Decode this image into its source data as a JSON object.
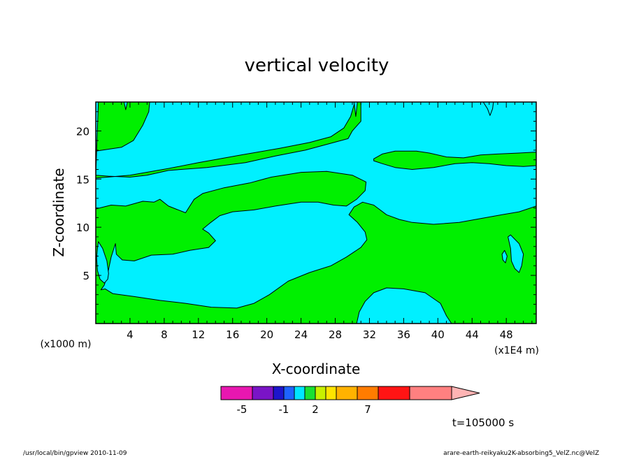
{
  "chart_data": {
    "type": "heatmap",
    "title": "vertical velocity",
    "xlabel": "X-coordinate",
    "ylabel": "Z-coordinate",
    "x_unit": "(x1E4 m)",
    "y_unit": "(x1000 m)",
    "xlim": [
      0,
      51.5
    ],
    "ylim": [
      0,
      23
    ],
    "x_ticks": [
      4,
      8,
      12,
      16,
      20,
      24,
      28,
      32,
      36,
      40,
      44,
      48
    ],
    "y_ticks": [
      5,
      10,
      15,
      20
    ],
    "time_label": "t=105000 s",
    "colorbar": {
      "colors": [
        "#e817b0",
        "#7a14c6",
        "#1d15cc",
        "#1e64ff",
        "#00e6ff",
        "#18e032",
        "#c8f000",
        "#ffe400",
        "#ffb200",
        "#ff7c00",
        "#ff1414",
        "#ff8080",
        "#ffb4b4"
      ],
      "widths": [
        1.5,
        1,
        0.5,
        0.5,
        0.5,
        0.5,
        0.5,
        0.5,
        1,
        1,
        1.5,
        283,
        1.7
      ],
      "tick_labels": [
        {
          "label": "-5",
          "position": 1.5
        },
        {
          "label": "-1",
          "position": 3.5
        },
        {
          "label": "2",
          "position": 5
        },
        {
          "label": "7",
          "position": 7.5
        }
      ]
    },
    "regions": [
      {
        "name": "green",
        "color": "#00f000"
      },
      {
        "name": "cyan",
        "color": "#00f0ff"
      }
    ],
    "contours": [
      {
        "fill": "#00f000",
        "points": [
          [
            0.3,
            23
          ],
          [
            6.3,
            23
          ],
          [
            6.2,
            22
          ],
          [
            5.5,
            20.6
          ],
          [
            4.4,
            19
          ],
          [
            3,
            18.3
          ],
          [
            0,
            17.9
          ],
          [
            0,
            15.1
          ],
          [
            4,
            15.4
          ],
          [
            8.5,
            16.1
          ],
          [
            12,
            16.7
          ],
          [
            17,
            17.5
          ],
          [
            21.5,
            18.2
          ],
          [
            25,
            18.8
          ],
          [
            27.5,
            19.4
          ],
          [
            29,
            20.3
          ],
          [
            29.8,
            21.5
          ],
          [
            30.3,
            23
          ],
          [
            31,
            23
          ],
          [
            31,
            21
          ],
          [
            30,
            20
          ],
          [
            29.5,
            19.2
          ],
          [
            27,
            18.6
          ],
          [
            24.5,
            18
          ],
          [
            21,
            17.4
          ],
          [
            17.5,
            16.7
          ],
          [
            13,
            16.2
          ],
          [
            8.5,
            15.9
          ],
          [
            6,
            15.4
          ],
          [
            4,
            15.2
          ],
          [
            1.5,
            15.3
          ],
          [
            0,
            15.4
          ]
        ]
      },
      {
        "fill": "#00f000",
        "points": [
          [
            0,
            11.9
          ],
          [
            1.8,
            12.3
          ],
          [
            3.5,
            12.2
          ],
          [
            5.5,
            12.7
          ],
          [
            6.8,
            12.6
          ],
          [
            7.5,
            12.9
          ],
          [
            8.5,
            12.2
          ],
          [
            10.5,
            11.5
          ],
          [
            11.5,
            12.9
          ],
          [
            12.5,
            13.5
          ],
          [
            15,
            14.1
          ],
          [
            18,
            14.6
          ],
          [
            20.5,
            15.2
          ],
          [
            24,
            15.7
          ],
          [
            27,
            15.8
          ],
          [
            30,
            15.4
          ],
          [
            31.6,
            14.7
          ],
          [
            31.5,
            13.8
          ],
          [
            30.5,
            12.9
          ],
          [
            29.3,
            12.2
          ],
          [
            27.8,
            12.3
          ],
          [
            26,
            12.6
          ],
          [
            24,
            12.6
          ],
          [
            21,
            12.2
          ],
          [
            18.5,
            11.8
          ],
          [
            16,
            11.6
          ],
          [
            14.5,
            11.2
          ],
          [
            13.3,
            10.4
          ],
          [
            12.5,
            9.8
          ],
          [
            13.2,
            9.4
          ],
          [
            14,
            8.6
          ],
          [
            13.2,
            7.9
          ],
          [
            11,
            7.6
          ],
          [
            9,
            7.2
          ],
          [
            6.5,
            7.1
          ],
          [
            4.5,
            6.5
          ],
          [
            3.1,
            6.6
          ],
          [
            2.4,
            7.2
          ],
          [
            2.3,
            8.3
          ],
          [
            1.8,
            6.9
          ],
          [
            1.4,
            5.2
          ],
          [
            1,
            4
          ],
          [
            0.6,
            3.5
          ],
          [
            1.1,
            3.6
          ],
          [
            2,
            3.1
          ],
          [
            4.5,
            2.8
          ],
          [
            7.5,
            2.4
          ],
          [
            10.5,
            2.1
          ],
          [
            13.5,
            1.7
          ],
          [
            16.5,
            1.6
          ],
          [
            18.5,
            2.1
          ],
          [
            20.3,
            3.0
          ],
          [
            22.5,
            4.4
          ],
          [
            25,
            5.3
          ],
          [
            27.5,
            6.0
          ],
          [
            29.3,
            6.9
          ],
          [
            31,
            7.9
          ],
          [
            31.7,
            8.7
          ],
          [
            31.5,
            9.5
          ],
          [
            30.6,
            10.5
          ],
          [
            29.6,
            11.3
          ],
          [
            30.2,
            12.1
          ],
          [
            31.2,
            12.6
          ],
          [
            32.5,
            12.3
          ],
          [
            34,
            11.3
          ],
          [
            35.5,
            10.8
          ],
          [
            37,
            10.5
          ],
          [
            39.5,
            10.3
          ],
          [
            42.5,
            10.5
          ],
          [
            45,
            10.9
          ],
          [
            47.5,
            11.3
          ],
          [
            49.5,
            11.6
          ],
          [
            51.5,
            12.2
          ],
          [
            51.5,
            0
          ],
          [
            41.6,
            0
          ],
          [
            41,
            0.8
          ],
          [
            40.3,
            2.1
          ],
          [
            38.5,
            3.2
          ],
          [
            36,
            3.6
          ],
          [
            34,
            3.7
          ],
          [
            32.5,
            3.2
          ],
          [
            31.5,
            2.3
          ],
          [
            30.8,
            1.2
          ],
          [
            30.5,
            0
          ],
          [
            0,
            0
          ]
        ]
      },
      {
        "fill": "#00f000",
        "points": [
          [
            32.5,
            17.1
          ],
          [
            33.5,
            17.6
          ],
          [
            35,
            17.9
          ],
          [
            37.5,
            17.9
          ],
          [
            39,
            17.7
          ],
          [
            41,
            17.3
          ],
          [
            43,
            17.2
          ],
          [
            45,
            17.5
          ],
          [
            47,
            17.6
          ],
          [
            49.5,
            17.7
          ],
          [
            51.5,
            17.8
          ],
          [
            51.5,
            16.4
          ],
          [
            50,
            16.3
          ],
          [
            48,
            16.4
          ],
          [
            46,
            16.6
          ],
          [
            44,
            16.7
          ],
          [
            42,
            16.6
          ],
          [
            39.5,
            16.2
          ],
          [
            37,
            16
          ],
          [
            35,
            16.2
          ],
          [
            33.5,
            16.6
          ],
          [
            32.5,
            16.9
          ]
        ]
      }
    ],
    "cyan_patches": [
      {
        "points": [
          [
            0.3,
            8.5
          ],
          [
            0.8,
            7.8
          ],
          [
            1.3,
            6.5
          ],
          [
            1.5,
            5.2
          ],
          [
            1.4,
            4.6
          ],
          [
            1,
            4.2
          ],
          [
            0.5,
            4.6
          ],
          [
            0.2,
            5.5
          ],
          [
            0.1,
            6.8
          ],
          [
            0.2,
            7.8
          ]
        ]
      },
      {
        "points": [
          [
            48.5,
            9.2
          ],
          [
            49.5,
            8.3
          ],
          [
            50,
            7.2
          ],
          [
            49.8,
            6
          ],
          [
            49.5,
            5.3
          ],
          [
            49,
            5.7
          ],
          [
            48.6,
            6.5
          ],
          [
            48.5,
            7.8
          ],
          [
            48.2,
            9
          ]
        ]
      },
      {
        "points": [
          [
            47.8,
            7.6
          ],
          [
            48.1,
            7
          ],
          [
            47.9,
            6.3
          ],
          [
            47.6,
            6.6
          ],
          [
            47.5,
            7.2
          ]
        ]
      },
      {
        "points": [
          [
            3.3,
            23
          ],
          [
            3.5,
            22.2
          ],
          [
            3.7,
            23
          ]
        ]
      },
      {
        "points": [
          [
            30.2,
            23
          ],
          [
            30.4,
            21.5
          ],
          [
            30.6,
            23
          ]
        ]
      },
      {
        "points": [
          [
            45.3,
            23
          ],
          [
            45.8,
            22.3
          ],
          [
            46.1,
            21.6
          ],
          [
            46.4,
            22.3
          ],
          [
            46.5,
            23
          ]
        ]
      }
    ]
  },
  "footer": {
    "left": "/usr/local/bin/gpview  2010-11-09",
    "right": "arare-earth-reikyaku2K-absorbing5_VelZ.nc@VelZ"
  }
}
